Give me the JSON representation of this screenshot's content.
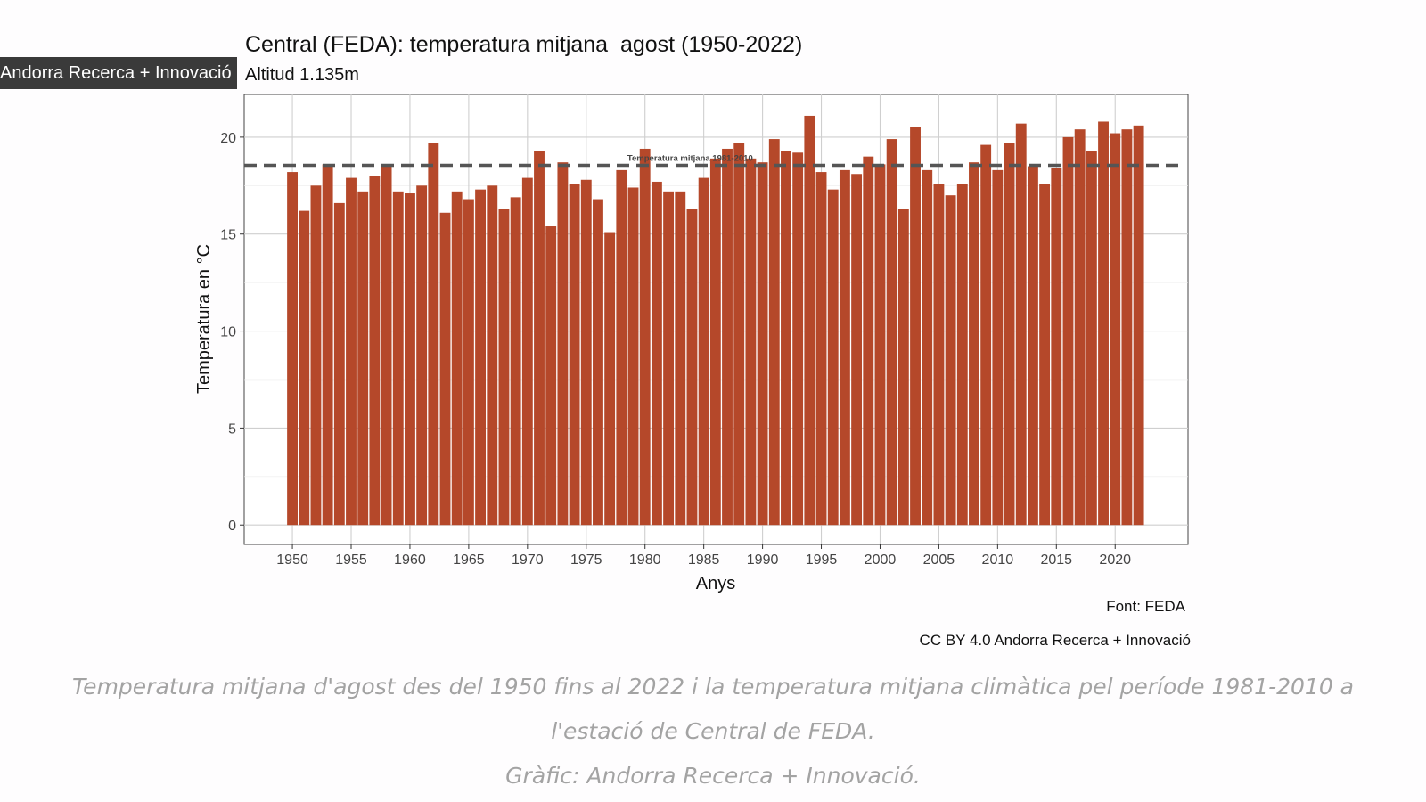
{
  "tooltip": {
    "text": "Andorra Recerca + Innovació"
  },
  "chart_data": {
    "type": "bar",
    "title": "Central (FEDA): temperatura mitjana  agost (1950-2022)",
    "subtitle": "Altitud 1.135m",
    "xlabel": "Anys",
    "ylabel": "Temperatura en °C",
    "ylim": [
      -1,
      22.2
    ],
    "yticks": [
      0,
      5,
      10,
      15,
      20
    ],
    "xticks": [
      1950,
      1955,
      1960,
      1965,
      1970,
      1975,
      1980,
      1985,
      1990,
      1995,
      2000,
      2005,
      2010,
      2015,
      2020
    ],
    "xlim": [
      1945.9,
      2026.2
    ],
    "grid": true,
    "categories": [
      1950,
      1951,
      1952,
      1953,
      1954,
      1955,
      1956,
      1957,
      1958,
      1959,
      1960,
      1961,
      1962,
      1963,
      1964,
      1965,
      1966,
      1967,
      1968,
      1969,
      1970,
      1971,
      1972,
      1973,
      1974,
      1975,
      1976,
      1977,
      1978,
      1979,
      1980,
      1981,
      1982,
      1983,
      1984,
      1985,
      1986,
      1987,
      1988,
      1989,
      1990,
      1991,
      1992,
      1993,
      1994,
      1995,
      1996,
      1997,
      1998,
      1999,
      2000,
      2001,
      2002,
      2003,
      2004,
      2005,
      2006,
      2007,
      2008,
      2009,
      2010,
      2011,
      2012,
      2013,
      2014,
      2015,
      2016,
      2017,
      2018,
      2019,
      2020,
      2021,
      2022
    ],
    "values": [
      18.2,
      16.2,
      17.5,
      18.6,
      16.6,
      17.9,
      17.2,
      18.0,
      18.5,
      17.2,
      17.1,
      17.5,
      19.7,
      16.1,
      17.2,
      16.8,
      17.3,
      17.5,
      16.3,
      16.9,
      17.9,
      19.3,
      15.4,
      18.7,
      17.6,
      17.8,
      16.8,
      15.1,
      18.3,
      17.4,
      19.4,
      17.7,
      17.2,
      17.2,
      16.3,
      17.9,
      18.9,
      19.4,
      19.7,
      18.9,
      18.7,
      19.9,
      19.3,
      19.2,
      21.1,
      18.2,
      17.3,
      18.3,
      18.1,
      19.0,
      18.6,
      19.9,
      16.3,
      20.5,
      18.3,
      17.6,
      17.0,
      17.6,
      18.7,
      19.6,
      18.3,
      19.7,
      20.7,
      18.5,
      17.6,
      18.4,
      20.0,
      20.4,
      19.3,
      20.8,
      20.2,
      20.4,
      20.6
    ],
    "bar_color": "#b5482a",
    "reference_line": {
      "value": 18.55,
      "label": "Temperatura mitjana 1981-2010",
      "color": "#555555"
    }
  },
  "source": "Font: FEDA",
  "license": "CC BY 4.0 Andorra Recerca + Innovació",
  "caption": {
    "line1": "Temperatura mitjana d'agost des del 1950 fins al 2022 i la temperatura mitjana climàtica pel període 1981-2010 a",
    "line2": "l'estació de Central de FEDA.",
    "line3": "Gràfic: Andorra Recerca + Innovació."
  }
}
